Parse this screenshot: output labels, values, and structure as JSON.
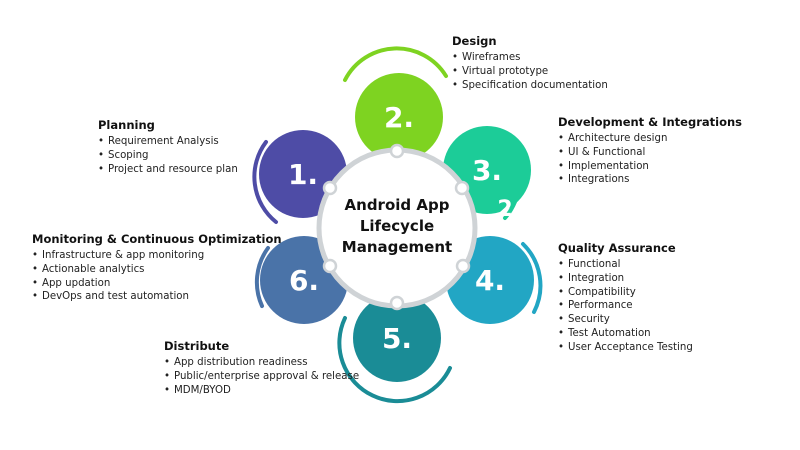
{
  "center": {
    "line1": "Android App",
    "line2": "Lifecycle",
    "line3": "Management"
  },
  "steps": [
    {
      "number": "1.",
      "title": "Planning",
      "color": "#4e4ca6",
      "items": [
        "Requirement Analysis",
        "Scoping",
        "Project and resource plan"
      ]
    },
    {
      "number": "2.",
      "title": "Design",
      "color": "#7ed321",
      "items": [
        "Wireframes",
        "Virtual prototype",
        "Specification documentation"
      ]
    },
    {
      "number": "3.",
      "title": "Development & Integrations",
      "color": "#1ccc98",
      "items": [
        "Architecture design",
        "UI & Functional",
        "Implementation",
        "Integrations"
      ]
    },
    {
      "number": "4.",
      "title": "Quality Assurance",
      "color": "#22a6c4",
      "items": [
        "Functional",
        "Integration",
        "Compatibility",
        "Performance",
        "Security",
        "Test Automation",
        "User Acceptance Testing"
      ]
    },
    {
      "number": "5.",
      "title": "Distribute",
      "color": "#1a8c96",
      "items": [
        "App distribution readiness",
        "Public/enterprise approval & release",
        "MDM/BYOD"
      ]
    },
    {
      "number": "6.",
      "title": "Monitoring & Continuous Optimization",
      "color": "#4a73a8",
      "items": [
        "Infrastructure & app monitoring",
        "Actionable analytics",
        "App updation",
        "DevOps and test automation"
      ]
    }
  ],
  "stray_glyph": "2",
  "ring_color": "#cfd3d6"
}
